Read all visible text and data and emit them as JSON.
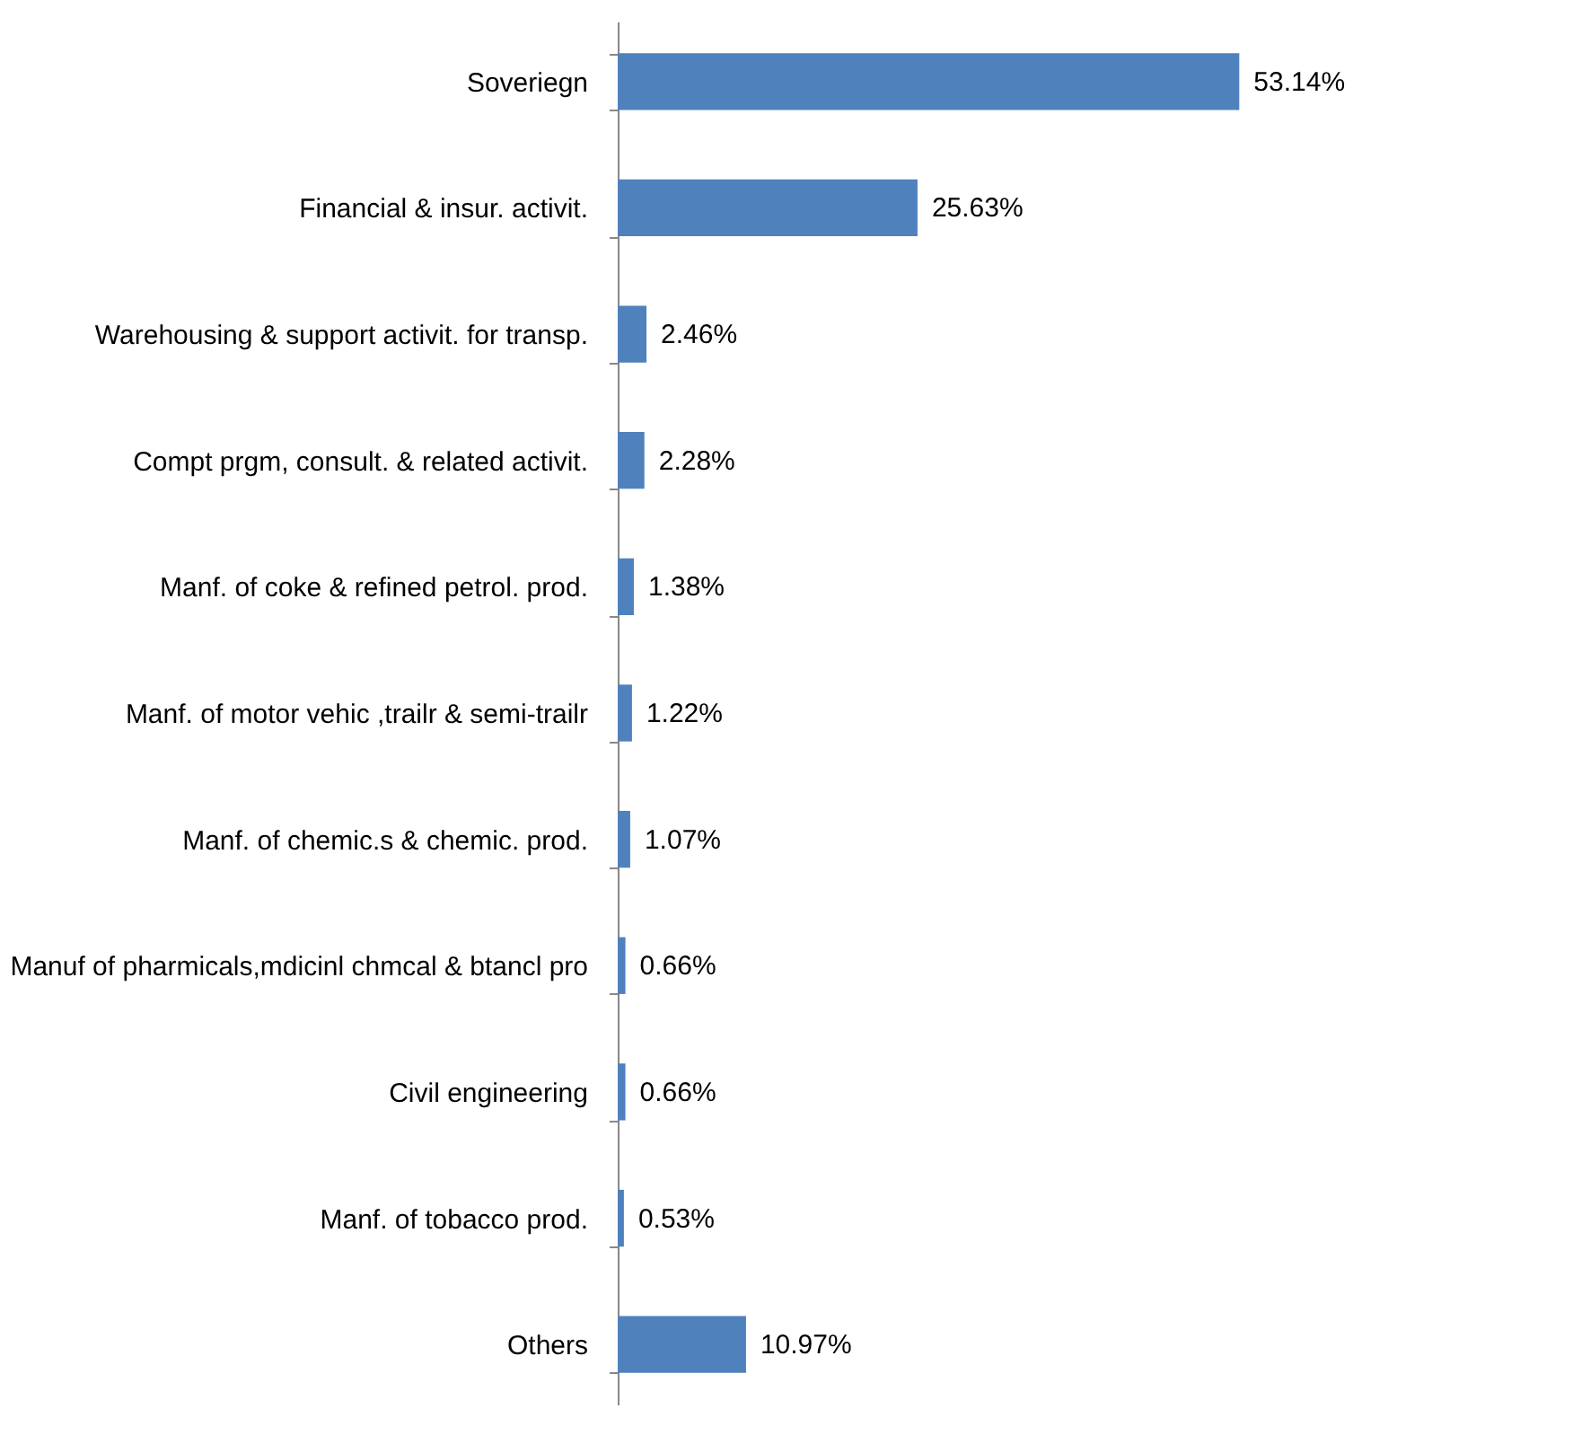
{
  "chart_data": {
    "type": "bar",
    "orientation": "horizontal",
    "categories": [
      "Soveriegn",
      "Financial & insur. activit.",
      "Warehousing & support activit. for transp.",
      "Compt prgm, consult. & related activit.",
      "Manf. of coke & refined petrol. prod.",
      "Manf. of motor vehic ,trailr & semi-trailr",
      "Manf. of chemic.s & chemic. prod.",
      "Manuf of pharmicals,mdicinl chmcal & btancl pro",
      "Civil engineering",
      "Manf. of tobacco prod.",
      "Others"
    ],
    "values": [
      53.14,
      25.63,
      2.46,
      2.28,
      1.38,
      1.22,
      1.07,
      0.66,
      0.66,
      0.53,
      10.97
    ],
    "value_labels": [
      "53.14%",
      "25.63%",
      "2.46%",
      "2.28%",
      "1.38%",
      "1.22%",
      "1.07%",
      "0.66%",
      "0.66%",
      "0.53%",
      "10.97%"
    ],
    "color": "#4f81bd"
  }
}
